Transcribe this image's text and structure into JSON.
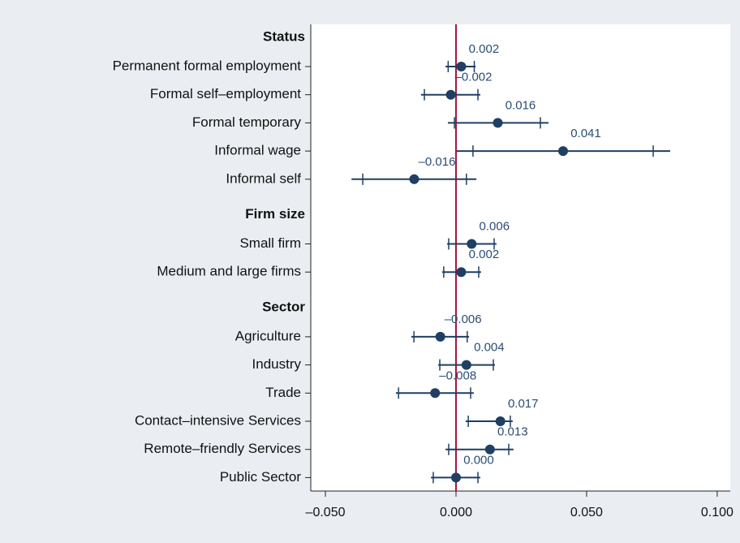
{
  "chart_data": {
    "type": "errorbar",
    "groups": [
      {
        "name": "Status",
        "categories": [
          "Permanent formal employment",
          "Formal self–employment",
          "Formal temporary",
          "Informal wage",
          "Informal self"
        ],
        "values": [
          0.002,
          -0.002,
          0.016,
          0.041,
          -0.016
        ],
        "value_labels": [
          "0.002",
          "–0.002",
          "0.016",
          "0.041",
          "–0.016"
        ],
        "ci_outer": [
          [
            -0.004,
            0.0075
          ],
          [
            -0.0134,
            0.0093
          ],
          [
            -0.0031,
            0.0354
          ],
          [
            0.0003,
            0.082
          ],
          [
            -0.04,
            0.0078
          ]
        ],
        "ci_inner": [
          [
            -0.003,
            0.007
          ],
          [
            -0.0121,
            0.0084
          ],
          [
            -0.0006,
            0.0323
          ],
          [
            0.0065,
            0.0755
          ],
          [
            -0.0357,
            0.004
          ]
        ]
      },
      {
        "name": "Firm size",
        "categories": [
          "Small firm",
          "Medium and large firms"
        ],
        "values": [
          0.006,
          0.002
        ],
        "value_labels": [
          "0.006",
          "0.002"
        ],
        "ci_outer": [
          [
            -0.0034,
            0.0155
          ],
          [
            -0.0053,
            0.0096
          ]
        ],
        "ci_inner": [
          [
            -0.0028,
            0.0146
          ],
          [
            -0.0047,
            0.0087
          ]
        ]
      },
      {
        "name": "Sector",
        "categories": [
          "Agriculture",
          "Industry",
          "Trade",
          "Contact–intensive Services",
          "Remote–friendly Services",
          "Public Sector"
        ],
        "values": [
          -0.006,
          0.004,
          -0.008,
          0.017,
          0.013,
          0.0
        ],
        "value_labels": [
          "–0.006",
          "0.004",
          "–0.008",
          "0.017",
          "0.013",
          "0.000"
        ],
        "ci_outer": [
          [
            -0.0171,
            0.005
          ],
          [
            -0.0068,
            0.0149
          ],
          [
            -0.023,
            0.0068
          ],
          [
            0.0037,
            0.0217
          ],
          [
            -0.004,
            0.022
          ],
          [
            -0.0096,
            0.0093
          ]
        ],
        "ci_inner": [
          [
            -0.0161,
            0.0043
          ],
          [
            -0.0062,
            0.0143
          ],
          [
            -0.022,
            0.0056
          ],
          [
            0.0047,
            0.0208
          ],
          [
            -0.0028,
            0.0202
          ],
          [
            -0.0087,
            0.0084
          ]
        ]
      }
    ],
    "color": "#1f3f63",
    "reference_line": 0,
    "reference_color": "#a3173f",
    "xlim": [
      -0.0556,
      0.105
    ],
    "xticks": [
      {
        "value": -0.05,
        "label": "–0.050"
      },
      {
        "value": 0,
        "label": "0.000"
      },
      {
        "value": 0.05,
        "label": "0.050"
      },
      {
        "value": 0.1,
        "label": "0.100"
      }
    ]
  }
}
